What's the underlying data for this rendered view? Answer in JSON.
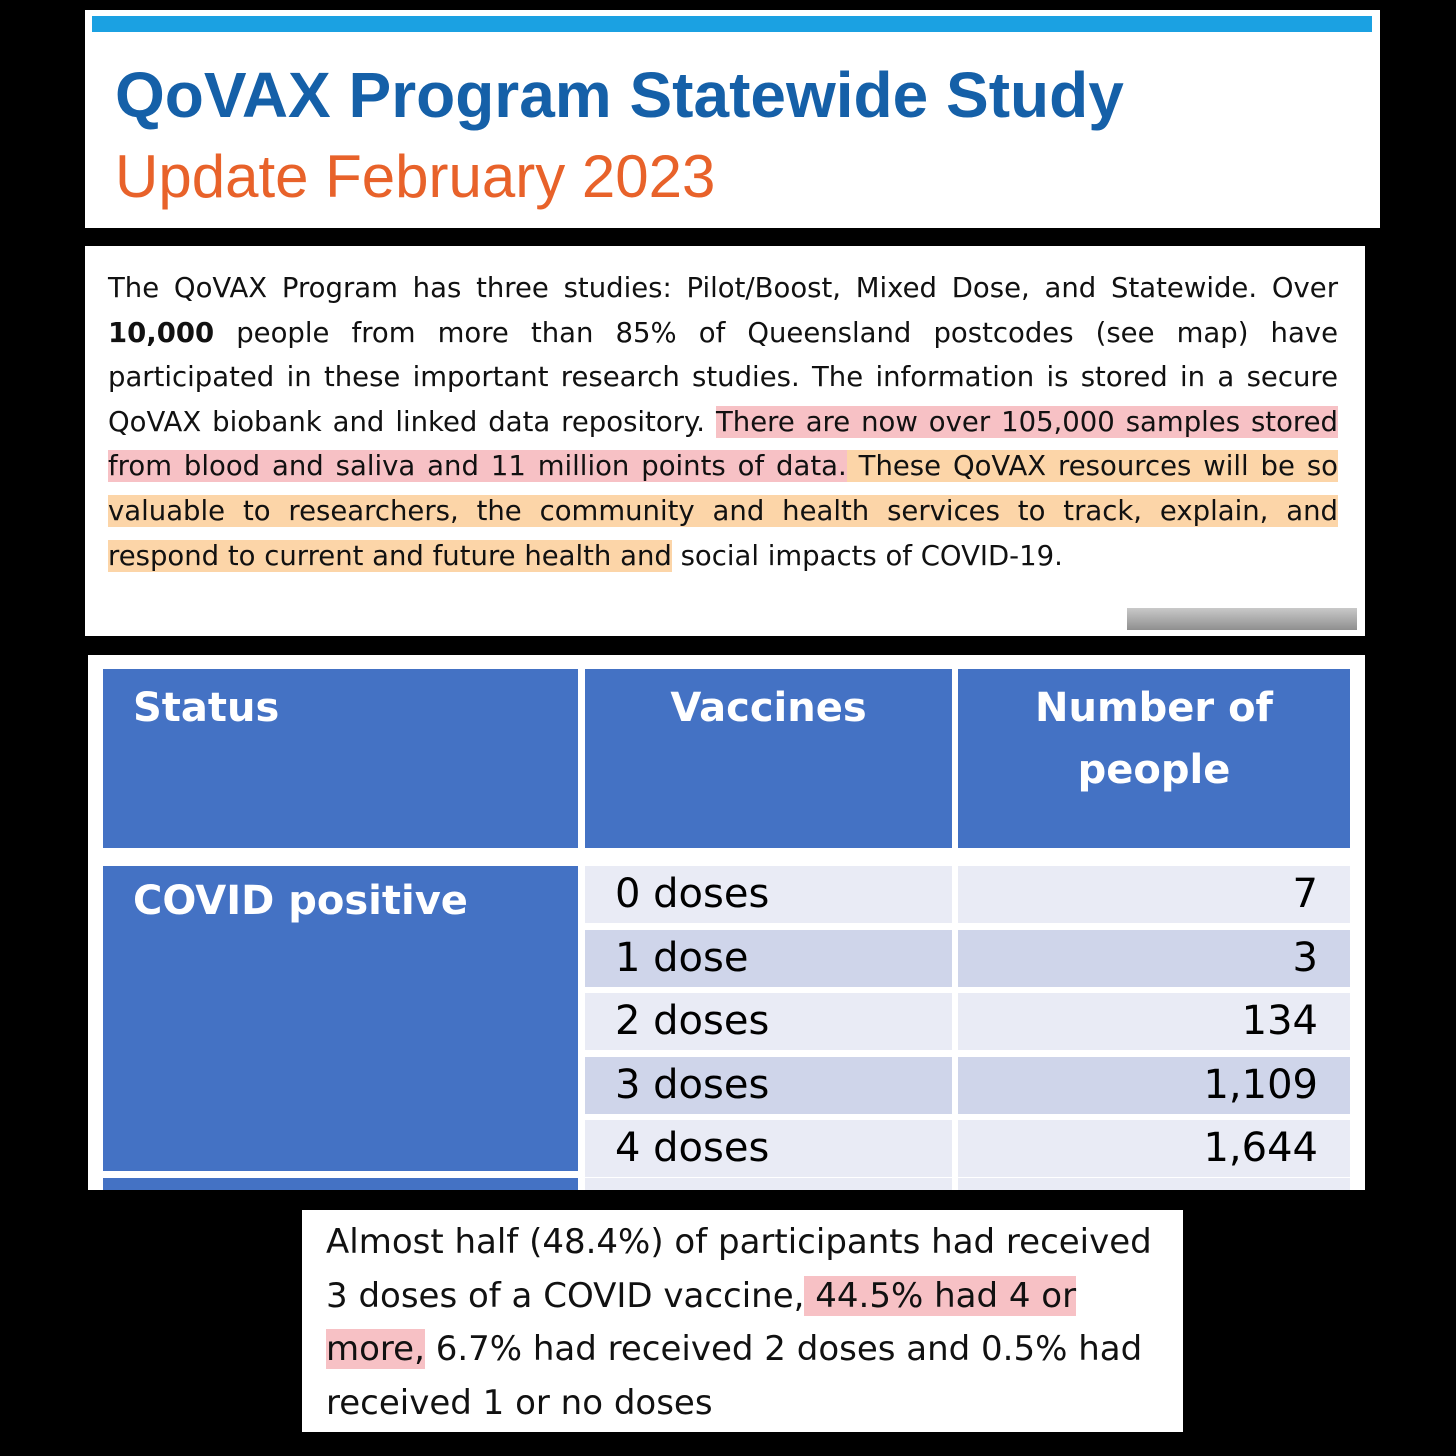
{
  "header": {
    "title": "QoVAX Program Statewide Study",
    "subtitle": "Update February 2023"
  },
  "intro": {
    "text": [
      "The QoVAX Program has three studies: Pilot/Boost, Mixed Dose, and Statewide. Over ",
      "10,000",
      " people from more than 85% of Queensland postcodes (see map) have participated in these important research studies. The information is stored in a secure QoVAX biobank and linked data repository. ",
      "There are now over 105,000 samples stored from blood and saliva and 11 million points of data.",
      " These QoVAX resources will be so valuable to researchers, the community and health services to track, explain, and respond to current and future health and",
      " social impacts of COVID-19."
    ]
  },
  "table": {
    "header": [
      "Status",
      "Vaccines",
      "Number of people"
    ],
    "group": "COVID positive",
    "rows": [
      [
        "0 doses",
        "7"
      ],
      [
        "1 dose",
        "3"
      ],
      [
        "2 doses",
        "134"
      ],
      [
        "3 doses",
        "1,109"
      ],
      [
        "4 doses",
        "1,644"
      ]
    ]
  },
  "summary": {
    "text": [
      "Almost half (48.4%) of participants had received 3 doses of a COVID vaccine,",
      " 44.5% had 4 or more,",
      " 6.7% had received 2 doses and 0.5% had received 1 or no doses"
    ]
  }
}
